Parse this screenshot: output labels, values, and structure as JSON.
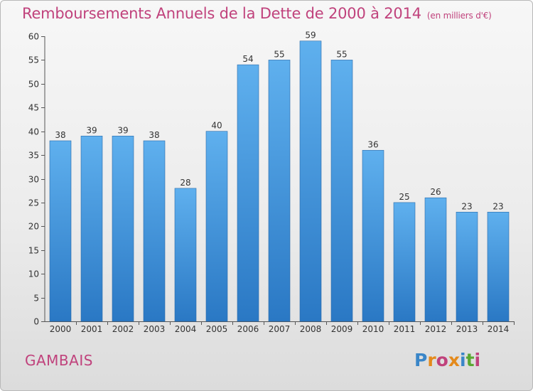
{
  "header": {
    "title": "Remboursements Annuels de la Dette de 2000 à 2014",
    "subtitle": "(en milliers d'€)"
  },
  "footer": {
    "town": "GAMBAIS",
    "logo": "Proxiti"
  },
  "colors": {
    "title": "#c0427c",
    "bar_top": "#5fb0ee",
    "bar_bottom": "#2a78c4",
    "logo_letters": [
      "#3a86c8",
      "#e48a1c",
      "#c0427c",
      "#e48a1c",
      "#3a86c8",
      "#5aa832",
      "#c0427c"
    ]
  },
  "chart_data": {
    "type": "bar",
    "categories": [
      "2000",
      "2001",
      "2002",
      "2003",
      "2004",
      "2005",
      "2006",
      "2007",
      "2008",
      "2009",
      "2010",
      "2011",
      "2012",
      "2013",
      "2014"
    ],
    "values": [
      38,
      39,
      39,
      38,
      28,
      40,
      54,
      55,
      59,
      55,
      36,
      25,
      26,
      23,
      23
    ],
    "title": "Remboursements Annuels de la Dette de 2000 à 2014",
    "xlabel": "",
    "ylabel": "",
    "ylim": [
      0,
      60
    ],
    "yticks": [
      0,
      5,
      10,
      15,
      20,
      25,
      30,
      35,
      40,
      45,
      50,
      55,
      60
    ],
    "grid": false,
    "data_labels": true
  }
}
